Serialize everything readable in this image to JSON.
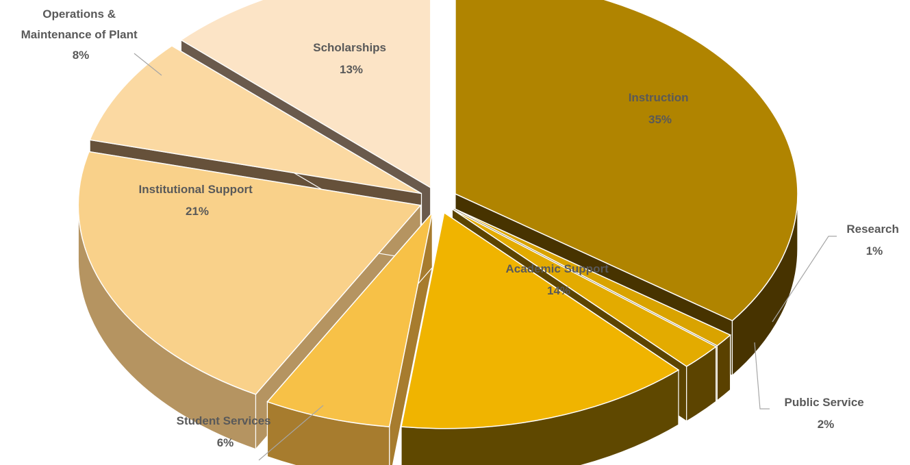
{
  "chart_data": {
    "type": "pie",
    "style": "3d-exploded",
    "legend": "none",
    "slices": [
      {
        "label": "Instruction",
        "value": 35,
        "display": "35%",
        "color": "#b08400",
        "side_color": "#473300"
      },
      {
        "label": "Research",
        "value": 1,
        "display": "1%",
        "color": "#d9a300",
        "side_color": "#5a4100"
      },
      {
        "label": "Public Service",
        "value": 2,
        "display": "2%",
        "color": "#e3ab00",
        "side_color": "#5c4400"
      },
      {
        "label": "Academic Support",
        "value": 14,
        "display": "14%",
        "color": "#f0b400",
        "side_color": "#5f4800"
      },
      {
        "label": "Student Services",
        "value": 6,
        "display": "6%",
        "color": "#f7c147",
        "side_color": "#a77c2e"
      },
      {
        "label": "Institutional Support",
        "value": 21,
        "display": "21%",
        "color": "#f9d18a",
        "side_color": "#b59461"
      },
      {
        "label": "Operations & Maintenance of Plant",
        "label_lines": [
          "Operations &",
          "Maintenance of Plant"
        ],
        "value": 8,
        "display": "8%",
        "color": "#fbd9a2",
        "side_color": "#66513a"
      },
      {
        "label": "Scholarships",
        "value": 13,
        "display": "13%",
        "color": "#fce4c6",
        "side_color": "#6a5a4c"
      }
    ]
  }
}
